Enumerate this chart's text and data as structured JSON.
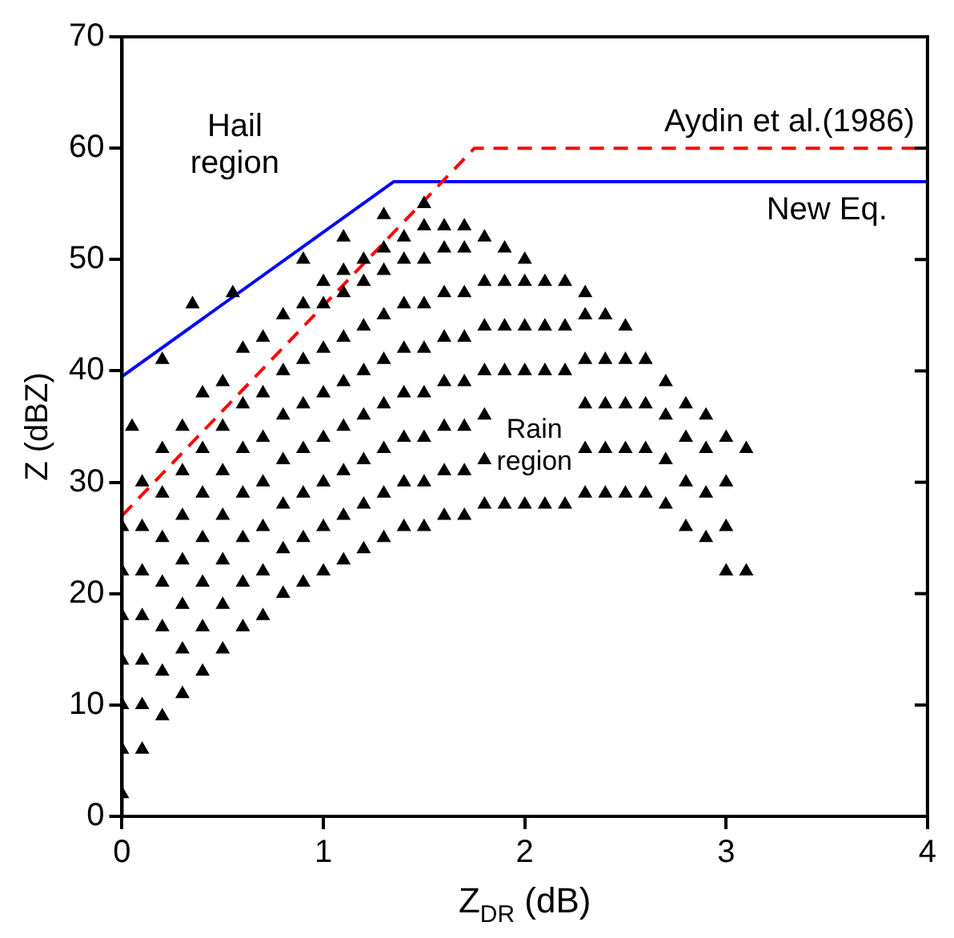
{
  "chart_data": {
    "type": "scatter",
    "xlabel": "Z$_{DR}$ (dB)",
    "ylabel": "Z (dBZ)",
    "xlim": [
      0,
      4
    ],
    "xticks": [
      0,
      1,
      2,
      3,
      4
    ],
    "ylim": [
      0,
      70
    ],
    "yticks": [
      0,
      10,
      20,
      30,
      40,
      50,
      60,
      70
    ],
    "grid": false,
    "legend": false,
    "marker": "triangle",
    "series": [
      {
        "type": "scatter",
        "color": "#000000",
        "x": [
          0,
          0,
          0,
          0,
          0,
          0,
          0,
          0.1,
          0.1,
          0.1,
          0.1,
          0.1,
          0.1,
          0.1,
          0.2,
          0.2,
          0.2,
          0.2,
          0.2,
          0.2,
          0.2,
          0.3,
          0.3,
          0.3,
          0.3,
          0.3,
          0.3,
          0.3,
          0.4,
          0.4,
          0.4,
          0.4,
          0.4,
          0.4,
          0.4,
          0.5,
          0.5,
          0.5,
          0.5,
          0.5,
          0.5,
          0.5,
          0.6,
          0.6,
          0.6,
          0.6,
          0.6,
          0.6,
          0.6,
          0.7,
          0.7,
          0.7,
          0.7,
          0.7,
          0.7,
          0.7,
          0.8,
          0.8,
          0.8,
          0.8,
          0.8,
          0.8,
          0.8,
          0.9,
          0.9,
          0.9,
          0.9,
          0.9,
          0.9,
          0.9,
          1.0,
          1.0,
          1.0,
          1.0,
          1.0,
          1.0,
          1.0,
          1.0,
          1.1,
          1.1,
          1.1,
          1.1,
          1.1,
          1.1,
          1.1,
          1.1,
          1.2,
          1.2,
          1.2,
          1.2,
          1.2,
          1.2,
          1.2,
          1.2,
          1.3,
          1.3,
          1.3,
          1.3,
          1.3,
          1.3,
          1.3,
          1.3,
          1.4,
          1.4,
          1.4,
          1.4,
          1.4,
          1.4,
          1.4,
          1.4,
          1.5,
          1.5,
          1.5,
          1.5,
          1.5,
          1.5,
          1.5,
          1.5,
          1.6,
          1.6,
          1.6,
          1.6,
          1.6,
          1.6,
          1.6,
          1.6,
          1.7,
          1.7,
          1.7,
          1.7,
          1.7,
          1.7,
          1.7,
          1.7,
          1.8,
          1.8,
          1.8,
          1.8,
          1.8,
          1.8,
          1.8,
          1.9,
          1.9,
          1.9,
          1.9,
          1.9,
          2.0,
          2.0,
          2.0,
          2.0,
          2.0,
          2.1,
          2.1,
          2.1,
          2.1,
          2.2,
          2.2,
          2.2,
          2.2,
          2.3,
          2.3,
          2.3,
          2.3,
          2.3,
          2.3,
          2.4,
          2.4,
          2.4,
          2.4,
          2.4,
          2.5,
          2.5,
          2.5,
          2.5,
          2.5,
          2.6,
          2.6,
          2.6,
          2.6,
          2.7,
          2.7,
          2.7,
          2.7,
          2.8,
          2.8,
          2.8,
          2.8,
          2.9,
          2.9,
          2.9,
          2.9,
          3.0,
          3.0,
          3.0,
          3.0,
          3.1,
          3.1,
          0.05,
          0.2,
          0.35,
          0.55,
          0.9,
          1.1,
          1.3,
          1.5
        ],
        "values": [
          2,
          6,
          10,
          14,
          18,
          22,
          26,
          6,
          10,
          14,
          18,
          22,
          26,
          30,
          9,
          13,
          17,
          21,
          25,
          29,
          33,
          11,
          15,
          19,
          23,
          27,
          31,
          35,
          13,
          17,
          21,
          25,
          29,
          33,
          38,
          15,
          19,
          23,
          27,
          31,
          35,
          39,
          17,
          21,
          25,
          29,
          33,
          37,
          42,
          18,
          22,
          26,
          30,
          34,
          38,
          43,
          20,
          24,
          28,
          32,
          36,
          40,
          45,
          21,
          25,
          29,
          33,
          37,
          41,
          46,
          22,
          26,
          30,
          34,
          38,
          42,
          46,
          48,
          23,
          27,
          31,
          35,
          39,
          43,
          47,
          49,
          24,
          28,
          32,
          36,
          40,
          44,
          48,
          50,
          25,
          29,
          33,
          37,
          41,
          45,
          49,
          51,
          26,
          30,
          34,
          38,
          42,
          46,
          50,
          52,
          26,
          30,
          34,
          38,
          42,
          46,
          50,
          53,
          27,
          31,
          35,
          39,
          43,
          47,
          51,
          53,
          27,
          31,
          35,
          39,
          43,
          47,
          51,
          53,
          28,
          32,
          36,
          40,
          44,
          48,
          52,
          28,
          40,
          44,
          48,
          51,
          28,
          40,
          44,
          48,
          50,
          28,
          40,
          44,
          48,
          28,
          40,
          44,
          48,
          29,
          33,
          37,
          41,
          45,
          47,
          29,
          33,
          37,
          41,
          45,
          29,
          33,
          37,
          41,
          44,
          29,
          33,
          37,
          41,
          28,
          32,
          36,
          39,
          26,
          30,
          34,
          37,
          25,
          29,
          33,
          36,
          22,
          26,
          30,
          34,
          22,
          33,
          35,
          41,
          46,
          47,
          50,
          52,
          54,
          55
        ]
      },
      {
        "type": "line",
        "name": "Aydin et al.(1986)",
        "color": "#ff0000",
        "line_style": "dashed",
        "marker": "none",
        "x": [
          0,
          1.75,
          4
        ],
        "values": [
          27,
          60,
          60
        ]
      },
      {
        "type": "line",
        "name": "New Eq.",
        "color": "#0000ff",
        "line_style": "solid",
        "marker": "none",
        "x": [
          0,
          1.35,
          4
        ],
        "values": [
          39.5,
          57,
          57
        ]
      }
    ],
    "annotations": [
      "Hail region",
      "Rain region"
    ]
  }
}
